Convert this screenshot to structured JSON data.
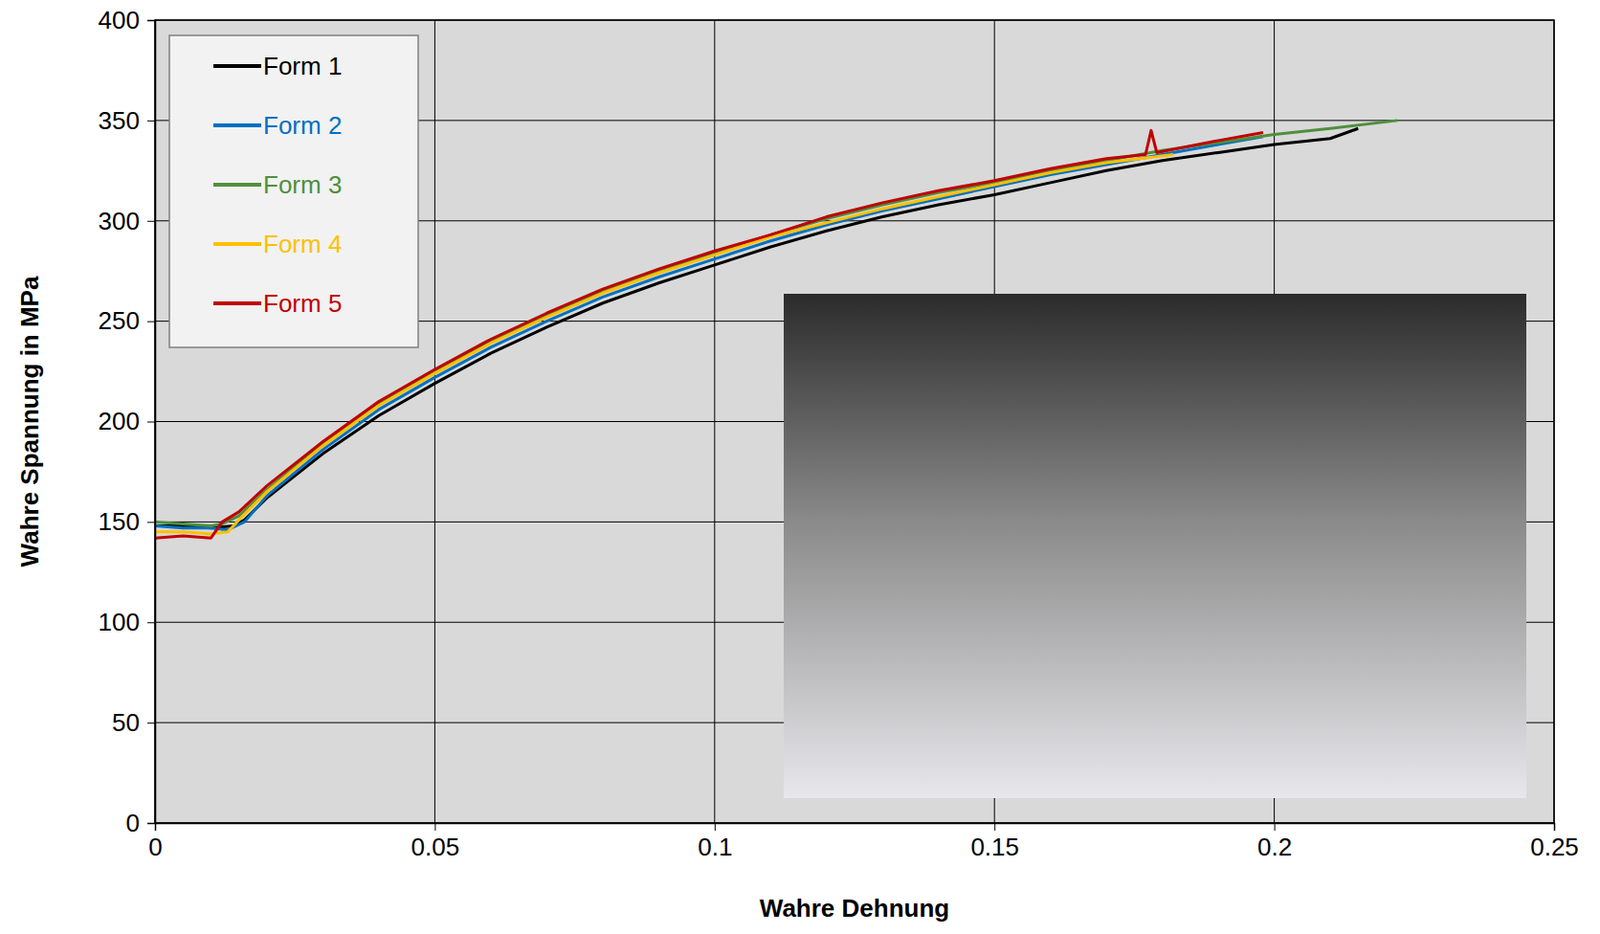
{
  "chart_data": {
    "type": "line",
    "x_label": "Wahre Dehnung",
    "y_label": "Wahre Spannung in MPa",
    "xlim": [
      0,
      0.25
    ],
    "xticks": [
      0,
      0.05,
      0.1,
      0.15,
      0.2,
      0.25
    ],
    "ylim": [
      0,
      400
    ],
    "yticks": [
      0,
      50,
      100,
      150,
      200,
      250,
      300,
      350,
      400
    ],
    "grid": true,
    "legend": "top-left",
    "series": [
      {
        "name": "Form 1",
        "color": "#000000",
        "x": [
          0,
          0.005,
          0.01,
          0.014,
          0.016,
          0.02,
          0.03,
          0.04,
          0.05,
          0.06,
          0.07,
          0.08,
          0.09,
          0.1,
          0.11,
          0.12,
          0.13,
          0.14,
          0.15,
          0.16,
          0.17,
          0.18,
          0.19,
          0.2,
          0.21,
          0.215
        ],
        "values": [
          148,
          148,
          147,
          148,
          151,
          162,
          184,
          203,
          219,
          234,
          247,
          259,
          269,
          278,
          287,
          295,
          302,
          308,
          313,
          319,
          325,
          330,
          334,
          338,
          341,
          346
        ]
      },
      {
        "name": "Form 2",
        "color": "#0070c0",
        "x": [
          0,
          0.005,
          0.01,
          0.013,
          0.016,
          0.02,
          0.03,
          0.04,
          0.05,
          0.06,
          0.07,
          0.08,
          0.09,
          0.1,
          0.11,
          0.12,
          0.13,
          0.14,
          0.15,
          0.16,
          0.17,
          0.18,
          0.19,
          0.198
        ],
        "values": [
          148,
          147,
          147,
          146,
          150,
          163,
          186,
          206,
          222,
          237,
          250,
          262,
          272,
          281,
          290,
          298,
          305,
          311,
          317,
          323,
          328,
          333,
          338,
          342
        ]
      },
      {
        "name": "Form 3",
        "color": "#4f8f3c",
        "x": [
          0,
          0.005,
          0.01,
          0.012,
          0.015,
          0.02,
          0.03,
          0.04,
          0.05,
          0.06,
          0.07,
          0.08,
          0.09,
          0.1,
          0.11,
          0.12,
          0.13,
          0.14,
          0.15,
          0.16,
          0.17,
          0.18,
          0.19,
          0.2,
          0.21,
          0.222
        ],
        "values": [
          150,
          149,
          148,
          149,
          153,
          166,
          189,
          209,
          225,
          240,
          253,
          265,
          275,
          284,
          293,
          301,
          308,
          314,
          319,
          325,
          330,
          335,
          339,
          343,
          346,
          350
        ]
      },
      {
        "name": "Form 4",
        "color": "#ffc000",
        "x": [
          0,
          0.005,
          0.01,
          0.013,
          0.015,
          0.02,
          0.03,
          0.04,
          0.05,
          0.06,
          0.07,
          0.08,
          0.09,
          0.1,
          0.11,
          0.12,
          0.13,
          0.14,
          0.15,
          0.16,
          0.17,
          0.182
        ],
        "values": [
          145,
          145,
          144,
          145,
          151,
          165,
          188,
          208,
          224,
          239,
          252,
          264,
          274,
          283,
          292,
          299,
          306,
          312,
          318,
          324,
          329,
          333
        ]
      },
      {
        "name": "Form 5",
        "color": "#c00000",
        "x": [
          0,
          0.005,
          0.01,
          0.012,
          0.015,
          0.02,
          0.03,
          0.04,
          0.05,
          0.06,
          0.07,
          0.08,
          0.09,
          0.1,
          0.11,
          0.12,
          0.13,
          0.14,
          0.15,
          0.16,
          0.17,
          0.177,
          0.178,
          0.179,
          0.19,
          0.198
        ],
        "values": [
          142,
          143,
          142,
          150,
          155,
          168,
          190,
          210,
          226,
          241,
          254,
          266,
          276,
          285,
          293,
          302,
          309,
          315,
          320,
          326,
          331,
          333,
          345,
          334,
          340,
          344
        ]
      }
    ]
  }
}
